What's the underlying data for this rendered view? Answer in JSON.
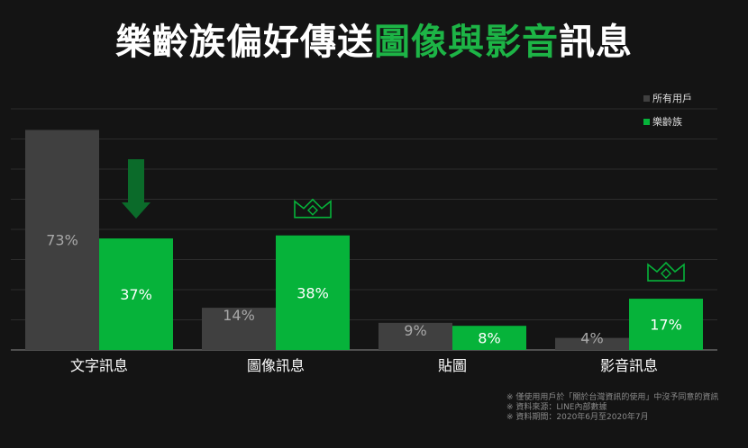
{
  "title": {
    "part1": "樂齡族偏好傳送",
    "highlight": "圖像與影音",
    "part2": "訊息"
  },
  "colors": {
    "all_users": "#404040",
    "seniors": "#06b33a",
    "title_highlight": "#1db446",
    "arrow": "#0b6b2a"
  },
  "chart_data": {
    "type": "bar",
    "categories": [
      "文字訊息",
      "圖像訊息",
      "貼圖",
      "影音訊息"
    ],
    "series": [
      {
        "name": "所有用戶",
        "values": [
          73,
          14,
          9,
          4
        ],
        "labels": [
          "73%",
          "14%",
          "9%",
          "4%"
        ]
      },
      {
        "name": "樂齡族",
        "values": [
          37,
          38,
          8,
          17
        ],
        "labels": [
          "37%",
          "38%",
          "8%",
          "17%"
        ]
      }
    ],
    "ylim": [
      0,
      80
    ],
    "grid": true,
    "legend": "top-right",
    "annotations": [
      {
        "type": "down-arrow-icon",
        "category": "文字訊息"
      },
      {
        "type": "crown-icon",
        "category": "圖像訊息"
      },
      {
        "type": "crown-icon",
        "category": "影音訊息"
      }
    ]
  },
  "legend": {
    "all_users": "所有用戶",
    "seniors": "樂齡族"
  },
  "footnotes": [
    "※ 僅使用用戶於「關於台灣資訊的使用」中沒予同意的資訊",
    "※ 資料來源：LINE內部數據",
    "※ 資料期間：2020年6月至2020年7月"
  ]
}
